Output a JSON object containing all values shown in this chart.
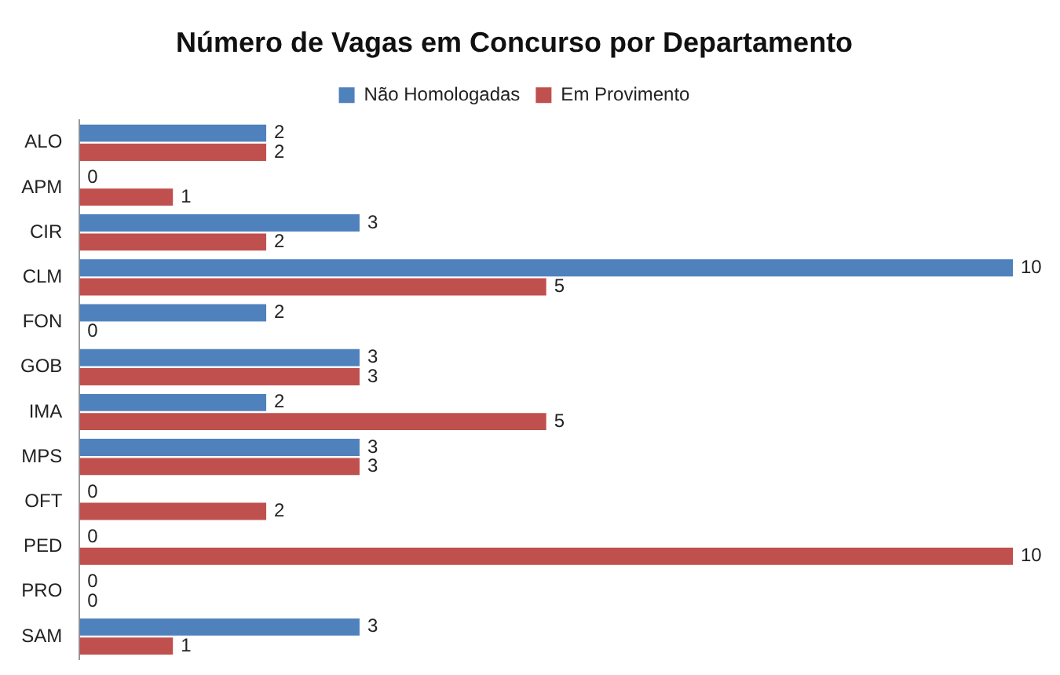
{
  "chart_data": {
    "type": "bar",
    "title": "Número de Vagas em Concurso por Departamento",
    "orientation": "horizontal",
    "categories": [
      "ALO",
      "APM",
      "CIR",
      "CLM",
      "FON",
      "GOB",
      "IMA",
      "MPS",
      "OFT",
      "PED",
      "PRO",
      "SAM"
    ],
    "series": [
      {
        "name": "Não Homologadas",
        "color": "#4f81bd",
        "values": [
          2,
          0,
          3,
          10,
          2,
          3,
          2,
          3,
          0,
          0,
          0,
          3
        ]
      },
      {
        "name": "Em Provimento",
        "color": "#c0504d",
        "values": [
          2,
          1,
          2,
          5,
          0,
          3,
          5,
          3,
          2,
          10,
          0,
          1
        ]
      }
    ],
    "xlim": [
      0,
      10
    ],
    "tick_labels": "y",
    "grid": false,
    "legend": "top",
    "data_labels": true
  }
}
